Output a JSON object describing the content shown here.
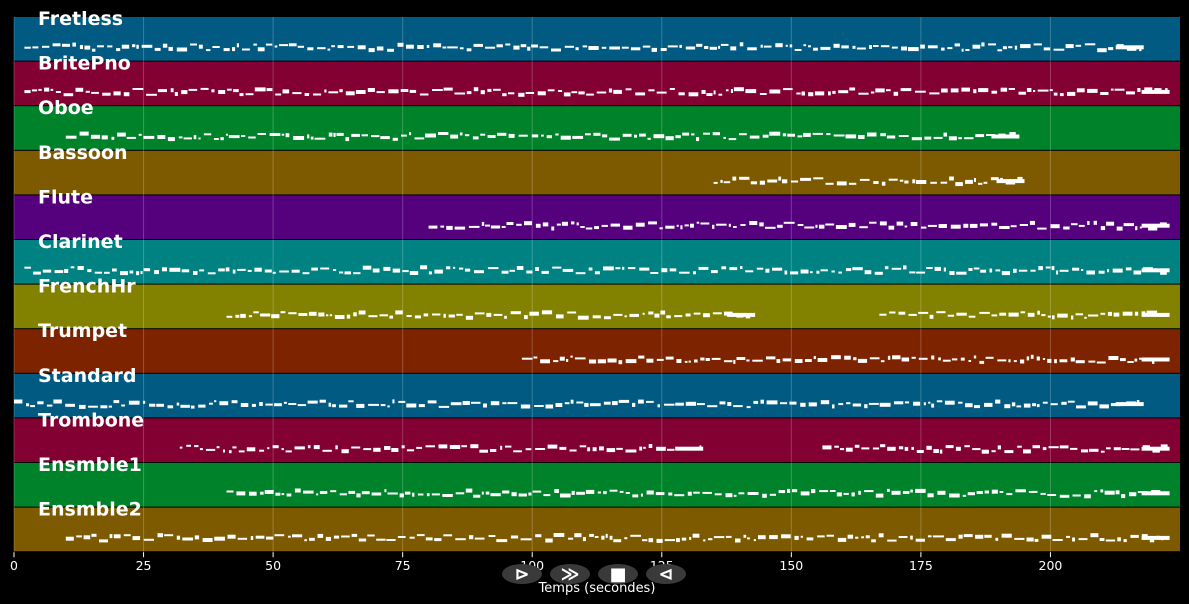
{
  "chart_data": {
    "type": "timeline",
    "title": "",
    "xlabel": "Temps (secondes)",
    "ylabel": "",
    "xlim": [
      0,
      225
    ],
    "x_ticks": [
      0,
      25,
      50,
      75,
      100,
      125,
      150,
      175,
      200
    ],
    "grid": true,
    "tracks": [
      {
        "name": "Fretless",
        "color": "#005a82",
        "segments": [
          [
            2,
            218
          ]
        ]
      },
      {
        "name": "BritePno",
        "color": "#820032",
        "segments": [
          [
            2,
            223
          ]
        ]
      },
      {
        "name": "Oboe",
        "color": "#00822a",
        "segments": [
          [
            10,
            194
          ]
        ]
      },
      {
        "name": "Bassoon",
        "color": "#7d5a00",
        "segments": [
          [
            135,
            195
          ]
        ]
      },
      {
        "name": "Flute",
        "color": "#55007d",
        "segments": [
          [
            80,
            223
          ]
        ]
      },
      {
        "name": "Clarinet",
        "color": "#008282",
        "segments": [
          [
            2,
            223
          ]
        ]
      },
      {
        "name": "FrenchHr",
        "color": "#828200",
        "segments": [
          [
            41,
            143
          ],
          [
            167,
            223
          ]
        ]
      },
      {
        "name": "Trumpet",
        "color": "#7d2300",
        "segments": [
          [
            98,
            223
          ]
        ]
      },
      {
        "name": "Standard",
        "color": "#005a82",
        "segments": [
          [
            0,
            218
          ]
        ]
      },
      {
        "name": "Trombone",
        "color": "#820032",
        "segments": [
          [
            32,
            133
          ],
          [
            156,
            223
          ]
        ]
      },
      {
        "name": "Ensmble1",
        "color": "#00822a",
        "segments": [
          [
            41,
            223
          ]
        ]
      },
      {
        "name": "Ensmble2",
        "color": "#7d5a00",
        "segments": [
          [
            10,
            223
          ]
        ]
      }
    ]
  },
  "controls": [
    {
      "name": "play-icon",
      "glyph": "⊳"
    },
    {
      "name": "forward-icon",
      "glyph": "≫"
    },
    {
      "name": "stop-icon",
      "glyph": "■"
    },
    {
      "name": "rewind-icon",
      "glyph": "⊲"
    }
  ]
}
